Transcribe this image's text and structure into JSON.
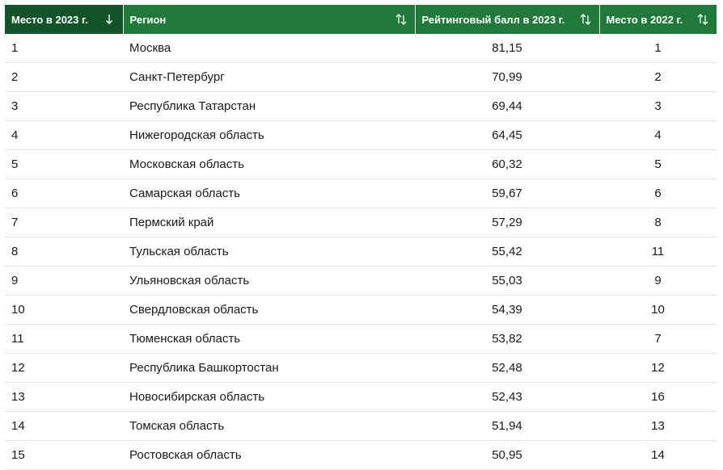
{
  "table": {
    "headers": {
      "rank_2023": "Место в 2023 г.",
      "region": "Регион",
      "score_2023": "Рейтинговый балл в 2023 г.",
      "rank_2022": "Место в 2022 г."
    },
    "sort": {
      "active_column": "rank_2023",
      "active_icon": "arrow-down-icon",
      "inactive_icon": "sort-updown-icon"
    },
    "colors": {
      "header_bg": "#1f7a3a",
      "active_header_bg": "#14532a",
      "header_text": "#ffffff"
    },
    "rows": [
      {
        "rank": "1",
        "region": "Москва",
        "score": "81,15",
        "prev": "1"
      },
      {
        "rank": "2",
        "region": "Санкт-Петербург",
        "score": "70,99",
        "prev": "2"
      },
      {
        "rank": "3",
        "region": "Республика Татарстан",
        "score": "69,44",
        "prev": "3"
      },
      {
        "rank": "4",
        "region": "Нижегородская область",
        "score": "64,45",
        "prev": "4"
      },
      {
        "rank": "5",
        "region": "Московская область",
        "score": "60,32",
        "prev": "5"
      },
      {
        "rank": "6",
        "region": "Самарская область",
        "score": "59,67",
        "prev": "6"
      },
      {
        "rank": "7",
        "region": "Пермский край",
        "score": "57,29",
        "prev": "8"
      },
      {
        "rank": "8",
        "region": "Тульская область",
        "score": "55,42",
        "prev": "11"
      },
      {
        "rank": "9",
        "region": "Ульяновская область",
        "score": "55,03",
        "prev": "9"
      },
      {
        "rank": "10",
        "region": "Свердловская область",
        "score": "54,39",
        "prev": "10"
      },
      {
        "rank": "11",
        "region": "Тюменская область",
        "score": "53,82",
        "prev": "7"
      },
      {
        "rank": "12",
        "region": "Республика Башкортостан",
        "score": "52,48",
        "prev": "12"
      },
      {
        "rank": "13",
        "region": "Новосибирская область",
        "score": "52,43",
        "prev": "16"
      },
      {
        "rank": "14",
        "region": "Томская область",
        "score": "51,94",
        "prev": "13"
      },
      {
        "rank": "15",
        "region": "Ростовская область",
        "score": "50,95",
        "prev": "14"
      }
    ]
  }
}
